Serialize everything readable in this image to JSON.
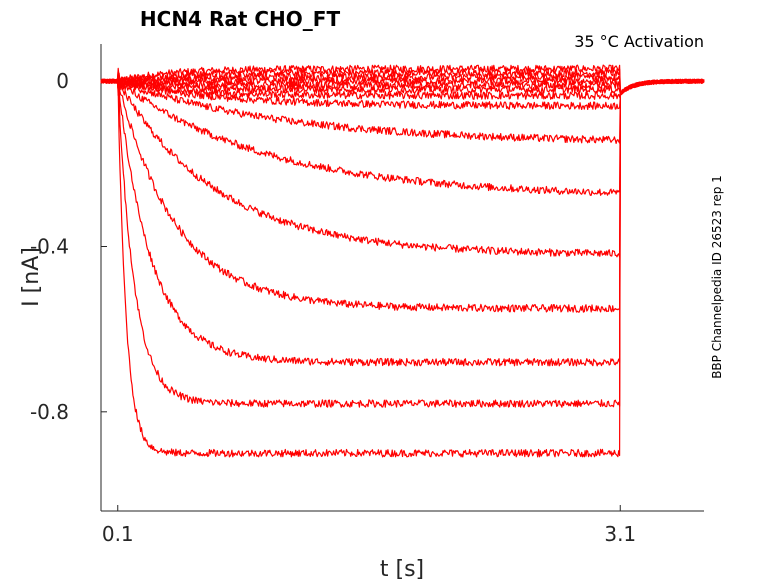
{
  "chart_data": {
    "type": "line",
    "title": "HCN4  Rat  CHO_FT",
    "annotation": "35 °C  Activation",
    "side_label": "BBP Channelpedia ID 26523 rep 1",
    "xlabel": "t [s]",
    "ylabel": "I [nA]",
    "xlim": [
      0.0,
      3.6
    ],
    "ylim": [
      -1.04,
      0.09
    ],
    "x_ticks": [
      {
        "value": 0.1,
        "label": "0.1"
      },
      {
        "value": 3.1,
        "label": "3.1"
      }
    ],
    "y_ticks": [
      {
        "value": 0,
        "label": "0"
      },
      {
        "value": -0.4,
        "label": "-0.4"
      },
      {
        "value": -0.8,
        "label": "-0.8"
      }
    ],
    "grid": false,
    "line_color": "#ff0000",
    "step": {
      "start": 0.1,
      "end": 3.1
    },
    "series": [
      {
        "steady": 0.03,
        "tau": 0.3
      },
      {
        "steady": 0.02,
        "tau": 0.3
      },
      {
        "steady": 0.01,
        "tau": 0.3
      },
      {
        "steady": 0.0,
        "tau": 0.3
      },
      {
        "steady": -0.01,
        "tau": 0.3
      },
      {
        "steady": -0.02,
        "tau": 0.3
      },
      {
        "steady": -0.035,
        "tau": 0.4
      },
      {
        "steady": -0.06,
        "tau": 0.6
      },
      {
        "steady": -0.15,
        "tau": 1.0
      },
      {
        "steady": -0.28,
        "tau": 0.9
      },
      {
        "steady": -0.42,
        "tau": 0.6
      },
      {
        "steady": -0.55,
        "tau": 0.35
      },
      {
        "steady": -0.68,
        "tau": 0.2
      },
      {
        "steady": -0.78,
        "tau": 0.1
      },
      {
        "steady": -0.9,
        "tau": 0.05
      }
    ]
  }
}
